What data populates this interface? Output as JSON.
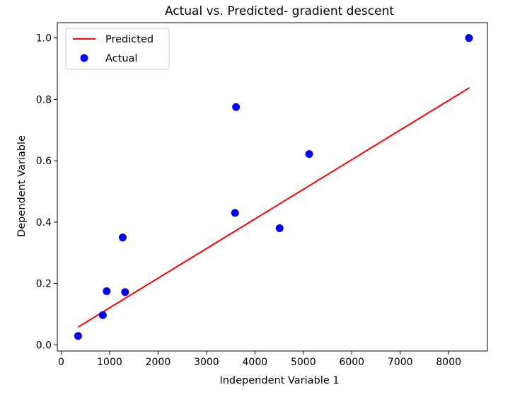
{
  "chart_data": {
    "type": "scatter",
    "title": "Actual vs. Predicted- gradient descent",
    "xlabel": "Independent Variable 1",
    "ylabel": "Dependent Variable",
    "xlim": [
      -80,
      8800
    ],
    "ylim": [
      -0.02,
      1.05
    ],
    "xticks": [
      0,
      1000,
      2000,
      3000,
      4000,
      5000,
      6000,
      7000,
      8000
    ],
    "yticks": [
      0.0,
      0.2,
      0.4,
      0.6,
      0.8,
      1.0
    ],
    "grid": false,
    "legend_position": "top-left",
    "series": [
      {
        "name": "Predicted",
        "kind": "line",
        "color": "#ff0000",
        "points": [
          [
            350,
            0.058
          ],
          [
            8430,
            0.838
          ]
        ]
      },
      {
        "name": "Actual",
        "kind": "scatter",
        "color": "#0000ff",
        "points": [
          [
            350,
            0.029
          ],
          [
            860,
            0.097
          ],
          [
            940,
            0.175
          ],
          [
            1270,
            0.35
          ],
          [
            1320,
            0.172
          ],
          [
            3590,
            0.43
          ],
          [
            3610,
            0.775
          ],
          [
            4510,
            0.38
          ],
          [
            5120,
            0.622
          ],
          [
            8420,
            1.0
          ]
        ]
      }
    ]
  }
}
